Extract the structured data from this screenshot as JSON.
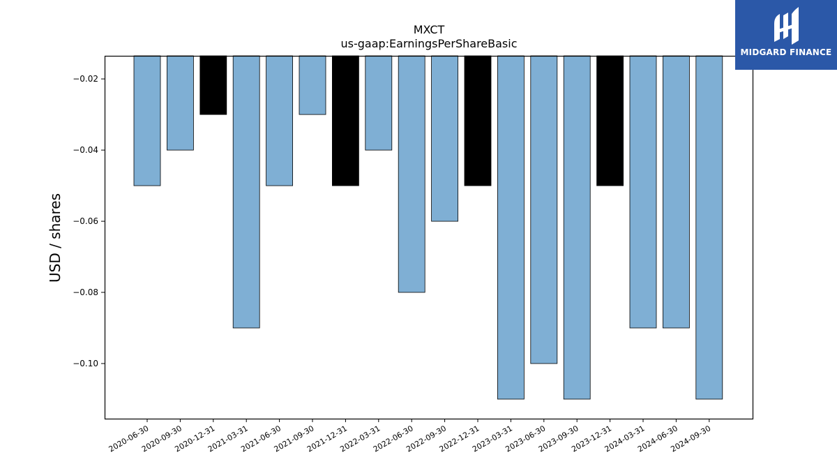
{
  "chart_data": {
    "type": "bar",
    "title": "MXCT",
    "subtitle": "us-gaap:EarningsPerShareBasic",
    "xlabel": "",
    "ylabel": "USD / shares",
    "ylim": [
      -0.1155,
      -0.0135
    ],
    "y_ticks": [
      -0.02,
      -0.04,
      -0.06,
      -0.08,
      -0.1
    ],
    "y_tick_labels": [
      "−0.02",
      "−0.04",
      "−0.06",
      "−0.08",
      "−0.10"
    ],
    "categories": [
      "2020-06-30",
      "2020-09-30",
      "2020-12-31",
      "2021-03-31",
      "2021-06-30",
      "2021-09-30",
      "2021-12-31",
      "2022-03-31",
      "2022-06-30",
      "2022-09-30",
      "2022-12-31",
      "2023-03-31",
      "2023-06-30",
      "2023-09-30",
      "2023-12-31",
      "2024-03-31",
      "2024-06-30",
      "2024-09-30"
    ],
    "values": [
      -0.05,
      -0.04,
      -0.03,
      -0.09,
      -0.05,
      -0.03,
      -0.05,
      -0.04,
      -0.08,
      -0.06,
      -0.05,
      -0.11,
      -0.1,
      -0.11,
      -0.05,
      -0.09,
      -0.09,
      -0.11
    ],
    "highlighted": [
      false,
      false,
      true,
      false,
      false,
      false,
      true,
      false,
      false,
      false,
      true,
      false,
      false,
      false,
      true,
      false,
      false,
      false
    ],
    "grid": false,
    "legend": "none",
    "colors": {
      "bar": "#7fafd4",
      "highlight": "#000000",
      "edge": "#000000",
      "axis": "#000000"
    }
  },
  "logo": {
    "text": "MIDGARD FINANCE",
    "icon": "midgard-logo-icon",
    "background": "#2b58a8"
  }
}
